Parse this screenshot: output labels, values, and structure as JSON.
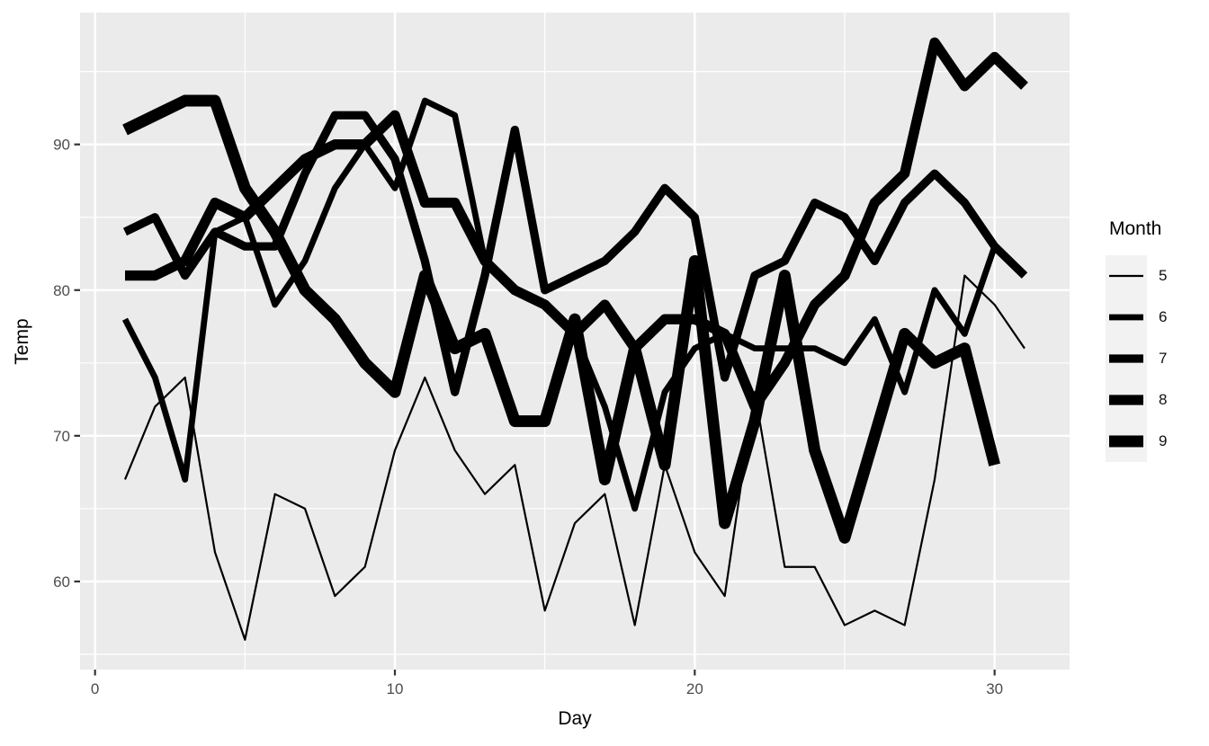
{
  "chart_data": {
    "type": "line",
    "title": "",
    "xlabel": "Day",
    "ylabel": "Temp",
    "x_ticks": [
      0,
      10,
      20,
      30
    ],
    "x_minor_ticks": [
      5,
      15,
      25
    ],
    "y_ticks": [
      60,
      70,
      80,
      90
    ],
    "y_minor_ticks": [
      55,
      65,
      75,
      85,
      95
    ],
    "x_domain": [
      -0.5,
      32.5
    ],
    "y_domain": [
      53.95,
      99.05
    ],
    "grid": "major-and-minor, white on grey panel",
    "legend_title": "Month",
    "legend_position": "right",
    "line_color": "#000000",
    "size_mapped_to": "Month",
    "series": [
      {
        "name": "5",
        "month": 5,
        "stroke_px": 2.2,
        "day_start": 1,
        "values": [
          67,
          72,
          74,
          62,
          56,
          66,
          65,
          59,
          61,
          69,
          74,
          69,
          66,
          68,
          58,
          64,
          66,
          57,
          68,
          62,
          59,
          73,
          61,
          61,
          57,
          58,
          57,
          67,
          81,
          79,
          76
        ]
      },
      {
        "name": "6",
        "month": 6,
        "stroke_px": 6.8,
        "day_start": 1,
        "values": [
          78,
          74,
          67,
          84,
          85,
          79,
          82,
          87,
          90,
          87,
          93,
          92,
          82,
          80,
          79,
          77,
          72,
          65,
          73,
          76,
          77,
          76,
          76,
          76,
          75,
          78,
          73,
          80,
          77,
          83
        ]
      },
      {
        "name": "7",
        "month": 7,
        "stroke_px": 9.3,
        "day_start": 1,
        "values": [
          84,
          85,
          81,
          84,
          83,
          83,
          88,
          92,
          92,
          89,
          82,
          73,
          81,
          91,
          80,
          81,
          82,
          84,
          87,
          85,
          74,
          81,
          82,
          86,
          85,
          82,
          86,
          88,
          86,
          83,
          81
        ]
      },
      {
        "name": "8",
        "month": 8,
        "stroke_px": 11.3,
        "day_start": 1,
        "values": [
          81,
          81,
          82,
          86,
          85,
          87,
          89,
          90,
          90,
          92,
          86,
          86,
          82,
          80,
          79,
          77,
          79,
          76,
          78,
          78,
          77,
          72,
          75,
          79,
          81,
          86,
          88,
          97,
          94,
          96,
          94
        ]
      },
      {
        "name": "9",
        "month": 9,
        "stroke_px": 13,
        "day_start": 1,
        "values": [
          91,
          92,
          93,
          93,
          87,
          84,
          80,
          78,
          75,
          73,
          81,
          76,
          77,
          71,
          71,
          78,
          67,
          76,
          68,
          82,
          64,
          71,
          81,
          69,
          63,
          70,
          77,
          75,
          76,
          68
        ]
      }
    ]
  },
  "colors": {
    "page_bg": "#FFFFFF",
    "panel_bg": "#EBEBEB",
    "grid": "#FFFFFF",
    "line": "#000000",
    "axis_text": "#4D4D4D",
    "tick_mark": "#333333",
    "legend_key_bg": "#F2F2F2",
    "title_text": "#000000"
  }
}
